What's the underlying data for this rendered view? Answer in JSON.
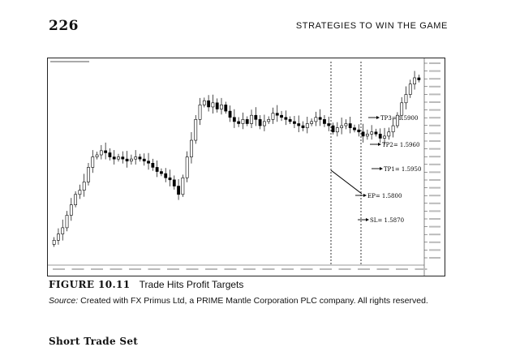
{
  "header": {
    "page_number": "226",
    "running_head": "STRATEGIES TO WIN THE GAME"
  },
  "figure": {
    "label": "FIGURE 10.11",
    "title": "Trade Hits Profit Targets",
    "source_prefix": "Source:",
    "source_text": "Created with FX Primus Ltd, a PRIME Mantle Corporation PLC company. All rights reserved."
  },
  "next_section_heading": "Short Trade Set",
  "chart_data": {
    "type": "candlestick",
    "title": "",
    "xlabel": "",
    "ylabel": "",
    "annotations": [
      {
        "name": "TP3",
        "label": "TP3= 1.5900",
        "value": 1.59
      },
      {
        "name": "TP2",
        "label": "TP2= 1.5960",
        "value": 1.596
      },
      {
        "name": "TP1",
        "label": "TP1= 1.5950",
        "value": 1.595
      },
      {
        "name": "EP",
        "label": "EP= 1.5800",
        "value": 1.58
      },
      {
        "name": "SL",
        "label": "SL= 1.5870",
        "value": 1.587
      }
    ],
    "close_series": [
      1.53,
      1.533,
      1.536,
      1.542,
      1.547,
      1.552,
      1.554,
      1.558,
      1.565,
      1.57,
      1.571,
      1.573,
      1.572,
      1.57,
      1.569,
      1.57,
      1.569,
      1.568,
      1.569,
      1.57,
      1.569,
      1.568,
      1.567,
      1.565,
      1.563,
      1.562,
      1.56,
      1.559,
      1.556,
      1.552,
      1.56,
      1.57,
      1.578,
      1.588,
      1.595,
      1.597,
      1.594,
      1.596,
      1.593,
      1.595,
      1.592,
      1.589,
      1.587,
      1.586,
      1.588,
      1.586,
      1.59,
      1.588,
      1.585,
      1.587,
      1.588,
      1.591,
      1.59,
      1.589,
      1.588,
      1.587,
      1.586,
      1.585,
      1.584,
      1.586,
      1.587,
      1.589,
      1.588,
      1.586,
      1.585,
      1.582,
      1.584,
      1.585,
      1.586,
      1.584,
      1.583,
      1.582,
      1.58,
      1.581,
      1.582,
      1.581,
      1.579,
      1.58,
      1.582,
      1.585,
      1.59,
      1.596,
      1.6,
      1.605,
      1.608,
      1.607
    ]
  }
}
